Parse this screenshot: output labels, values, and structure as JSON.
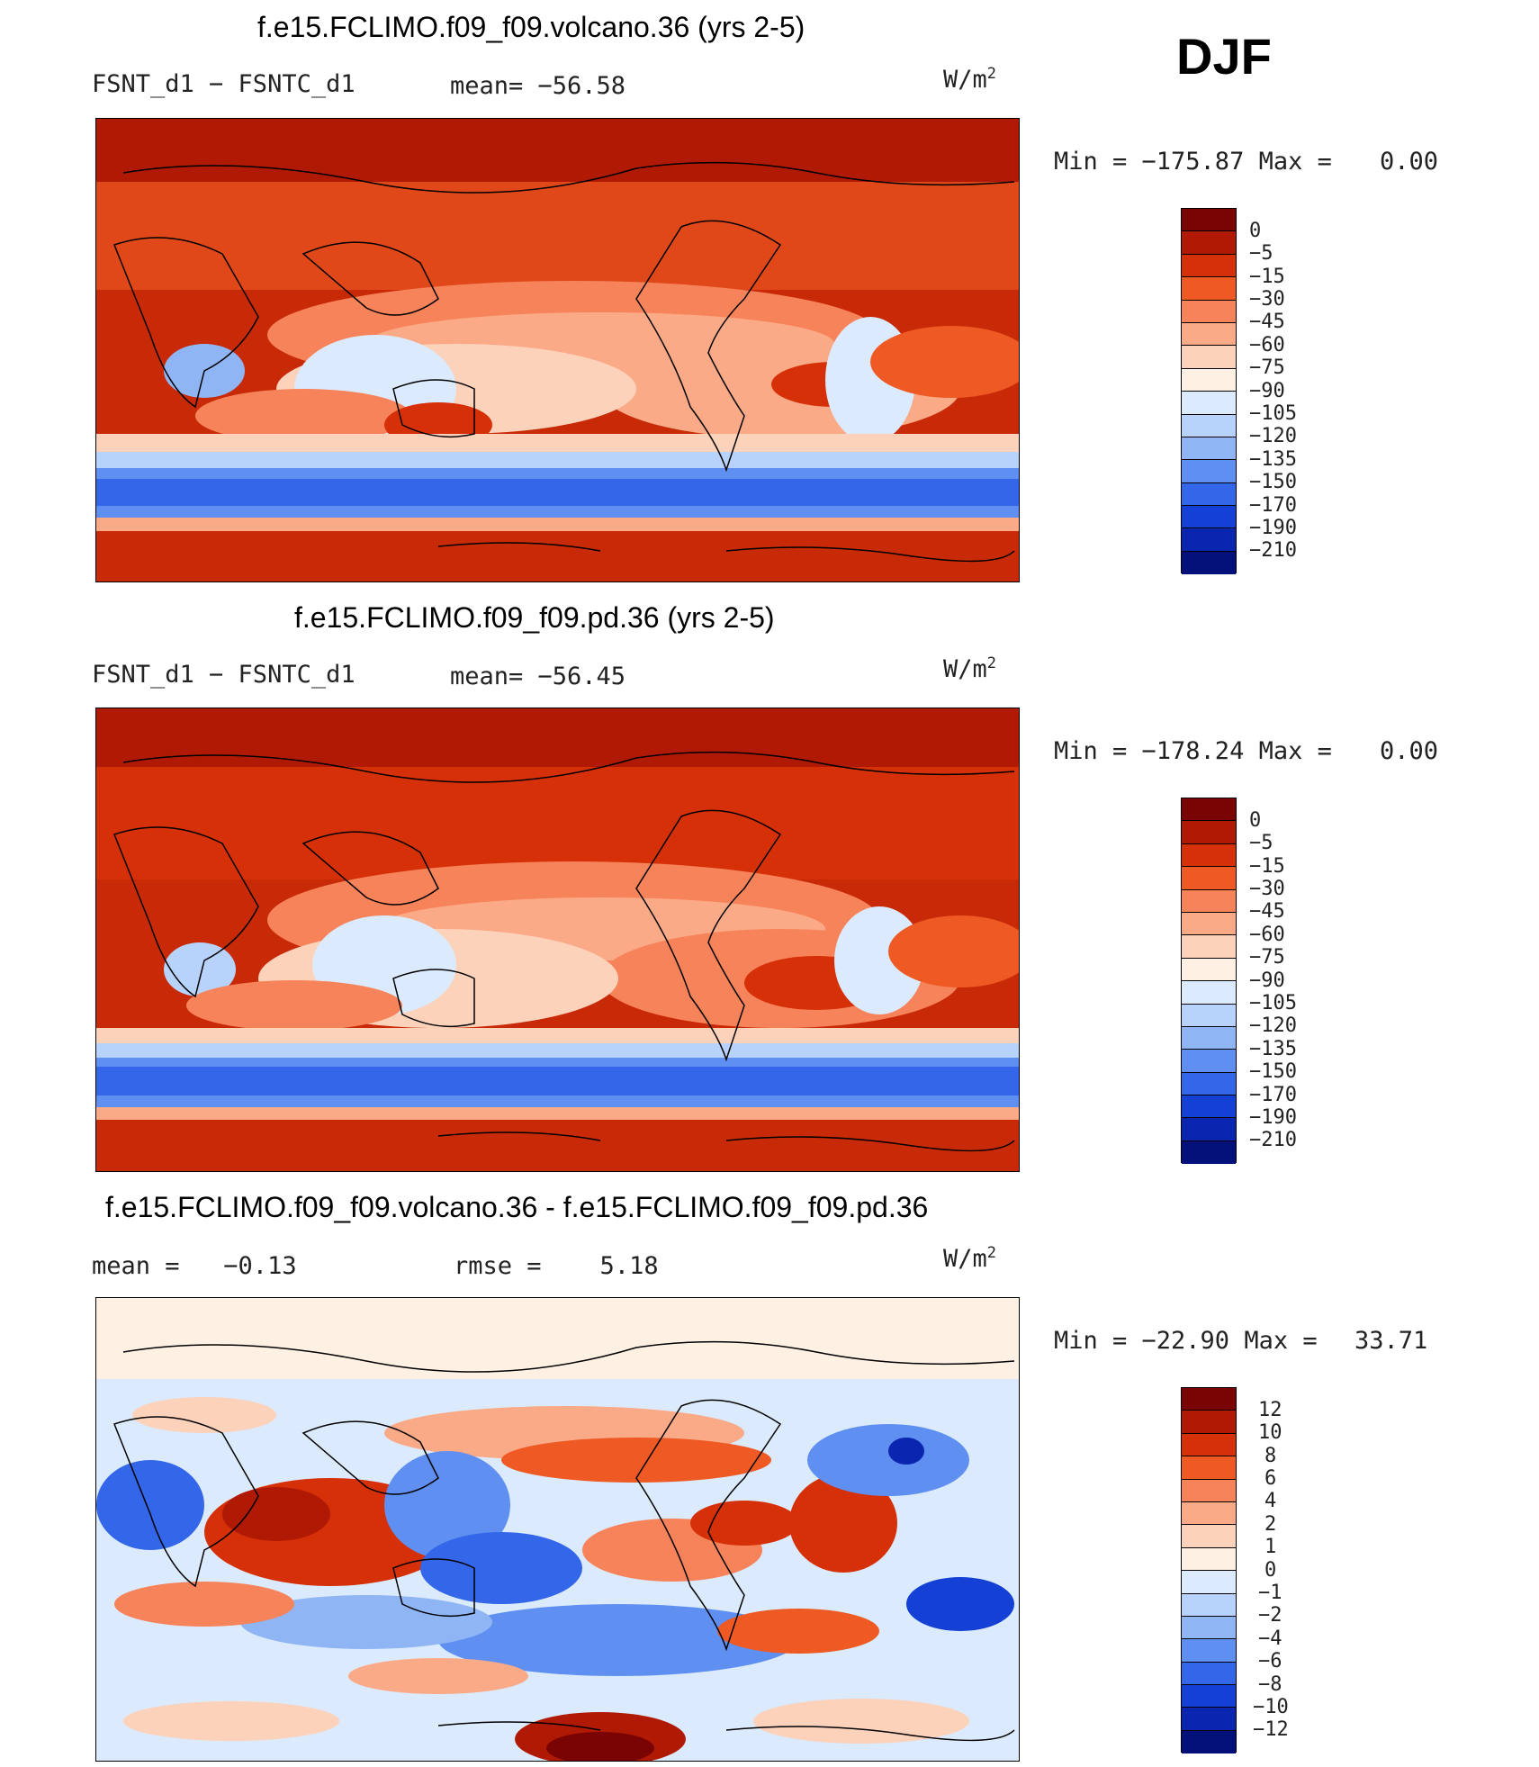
{
  "season": "DJF",
  "panels": [
    {
      "title": "f.e15.FCLIMO.f09_f09.volcano.36 (yrs 2-5)",
      "left_label": "FSNT_d1 − FSNTC_d1",
      "mid_label": "mean= −56.58",
      "units_base": "W/m",
      "units_sup": "2",
      "minmax": "Min = −175.87 Max =",
      "max_value": "0.00",
      "colorbar_labels": [
        "0",
        "−5",
        "−15",
        "−30",
        "−45",
        "−60",
        "−75",
        "−90",
        "−105",
        "−120",
        "−135",
        "−150",
        "−170",
        "−190",
        "−210"
      ]
    },
    {
      "title": "f.e15.FCLIMO.f09_f09.pd.36 (yrs 2-5)",
      "left_label": "FSNT_d1 − FSNTC_d1",
      "mid_label": "mean= −56.45",
      "units_base": "W/m",
      "units_sup": "2",
      "minmax": "Min = −178.24 Max =",
      "max_value": "0.00",
      "colorbar_labels": [
        "0",
        "−5",
        "−15",
        "−30",
        "−45",
        "−60",
        "−75",
        "−90",
        "−105",
        "−120",
        "−135",
        "−150",
        "−170",
        "−190",
        "−210"
      ]
    },
    {
      "title": "f.e15.FCLIMO.f09_f09.volcano.36 - f.e15.FCLIMO.f09_f09.pd.36",
      "left_label": "mean =   −0.13",
      "mid_label": "rmse =    5.18",
      "units_base": "W/m",
      "units_sup": "2",
      "minmax": "Min = −22.90 Max =",
      "max_value": "33.71",
      "colorbar_labels": [
        "12",
        "10",
        "8",
        "6",
        "4",
        "2",
        "1",
        "0",
        "−1",
        "−2",
        "−4",
        "−6",
        "−8",
        "−10",
        "−12"
      ]
    }
  ],
  "colors": {
    "scale": [
      "#7a0403",
      "#b01a05",
      "#d63008",
      "#ef5a24",
      "#f7835a",
      "#fbaa87",
      "#fdd2bb",
      "#fff0e4",
      "#dbeafc",
      "#b8d3fb",
      "#8fb5f5",
      "#5f8ff0",
      "#3366e8",
      "#1440d6",
      "#0a25b0",
      "#04107a"
    ]
  }
}
